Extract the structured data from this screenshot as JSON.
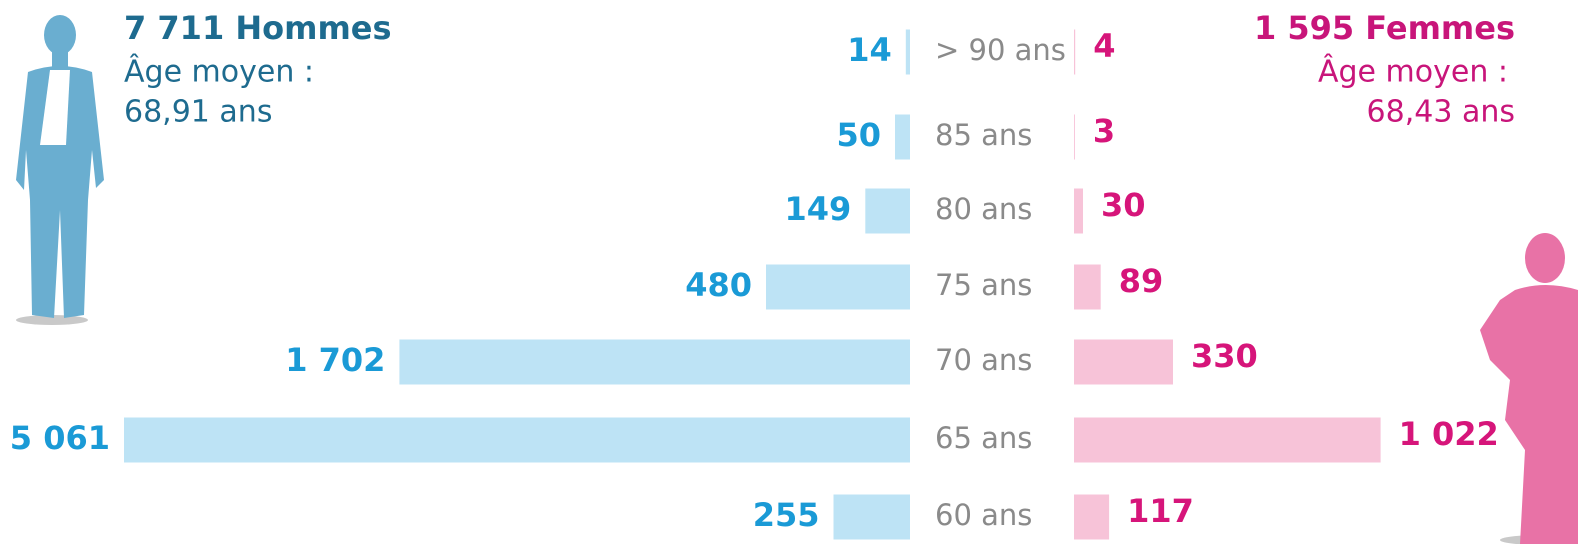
{
  "chart_data": {
    "type": "pyramid",
    "categories": [
      "> 90 ans",
      "85 ans",
      "80 ans",
      "75 ans",
      "70 ans",
      "65 ans",
      "60 ans"
    ],
    "series": [
      {
        "name": "7 711 Hommes",
        "subtitle": "Âge moyen :",
        "mean": "68,91 ans",
        "color": "#bde3f5",
        "label_color": "#1a9ad6",
        "values": [
          14,
          50,
          149,
          480,
          1702,
          5061,
          255
        ],
        "value_labels": [
          "14",
          "50",
          "149",
          "480",
          "1 702",
          "5 061",
          "255"
        ]
      },
      {
        "name": "1 595 Femmes",
        "subtitle": "Âge moyen :",
        "mean": "68,43 ans",
        "color": "#f7c3d8",
        "label_color": "#d6157a",
        "values": [
          4,
          3,
          30,
          89,
          330,
          1022,
          117
        ],
        "value_labels": [
          "4",
          "3",
          "30",
          "89",
          "330",
          "1 022",
          "117"
        ]
      }
    ]
  }
}
